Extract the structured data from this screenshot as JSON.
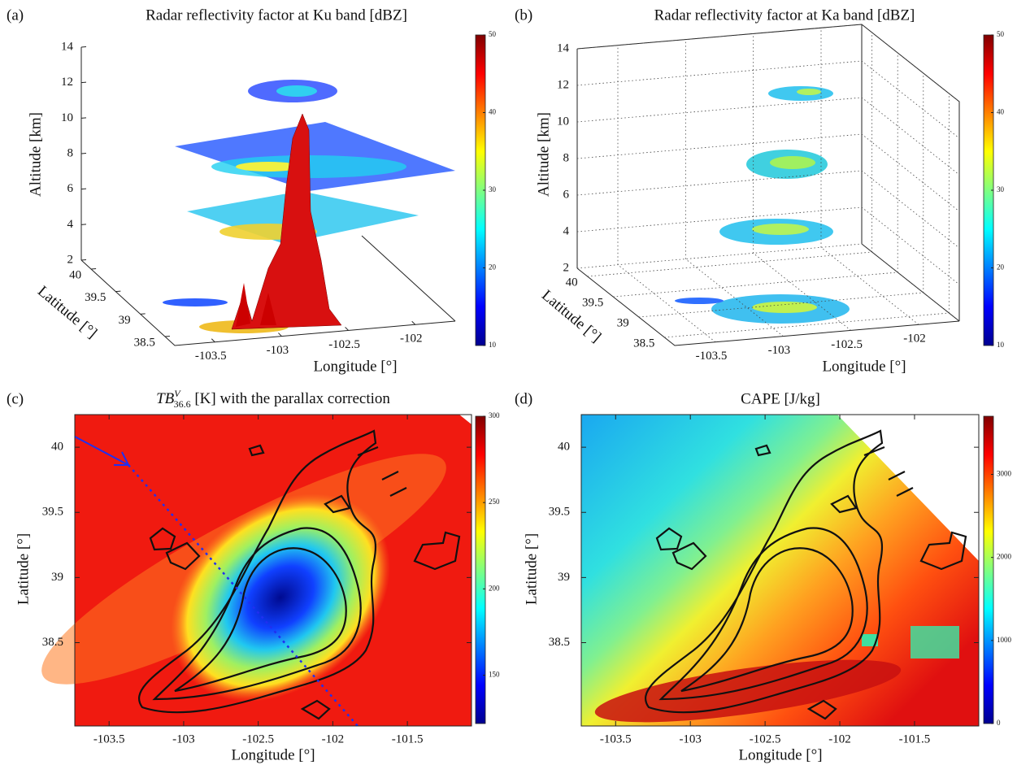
{
  "chart_data": [
    {
      "type": "surface3d",
      "panel_label": "(a)",
      "title": "Radar reflectivity factor at Ku band [dBZ]",
      "xlabel": "Longitude [°]",
      "ylabel": "Latitude [°]",
      "zlabel": "Altitude [km]",
      "xlim": [
        -103.8,
        -101.7
      ],
      "xticks": [
        -103.5,
        -103,
        -102.5,
        -102
      ],
      "ylim": [
        38.3,
        40.2
      ],
      "yticks": [
        38.5,
        39,
        39.5,
        40
      ],
      "zlim": [
        2,
        14
      ],
      "zticks": [
        2,
        4,
        6,
        8,
        10,
        12,
        14
      ],
      "clim": [
        10,
        50
      ],
      "cticks": [
        10,
        20,
        30,
        40,
        50
      ],
      "colormap": "jet",
      "grid": false
    },
    {
      "type": "scatter3d",
      "panel_label": "(b)",
      "title": "Radar reflectivity factor at Ka band [dBZ]",
      "xlabel": "Longitude [°]",
      "ylabel": "Latitude [°]",
      "zlabel": "Altitude [km]",
      "xlim": [
        -103.8,
        -101.7
      ],
      "xticks": [
        -103.5,
        -103,
        -102.5,
        -102
      ],
      "ylim": [
        38.3,
        40.2
      ],
      "yticks": [
        38.5,
        39,
        39.5,
        40
      ],
      "zlim": [
        2,
        14
      ],
      "zticks": [
        2,
        4,
        6,
        8,
        10,
        12,
        14
      ],
      "clim": [
        10,
        50
      ],
      "cticks": [
        10,
        20,
        30,
        40,
        50
      ],
      "colormap": "jet",
      "grid": true
    },
    {
      "type": "heatmap",
      "panel_label": "(c)",
      "title_main": "TB",
      "title_sup": "V",
      "title_sub": "36.6",
      "title_rest": " [K] with the parallax correction",
      "xlabel": "Longitude [°]",
      "ylabel": "Latitude [°]",
      "xlim": [
        -103.73,
        -101.07
      ],
      "xticks": [
        -103.5,
        -103,
        -102.5,
        -102,
        -101.5
      ],
      "ylim": [
        37.86,
        40.25
      ],
      "yticks": [
        38.5,
        39,
        39.5,
        40
      ],
      "clim": [
        122,
        300
      ],
      "cticks": [
        150,
        200,
        250,
        300
      ],
      "colormap": "jet"
    },
    {
      "type": "heatmap",
      "panel_label": "(d)",
      "title": "CAPE [J/kg]",
      "xlabel": "Longitude [°]",
      "ylabel": "Latitude [°]",
      "xlim": [
        -103.73,
        -101.07
      ],
      "xticks": [
        -103.5,
        -103,
        -102.5,
        -102,
        -101.5
      ],
      "ylim": [
        37.86,
        40.25
      ],
      "yticks": [
        38.5,
        39,
        39.5,
        40
      ],
      "clim": [
        0,
        3700
      ],
      "cticks": [
        0,
        1000,
        2000,
        3000
      ],
      "colormap": "jet"
    }
  ]
}
